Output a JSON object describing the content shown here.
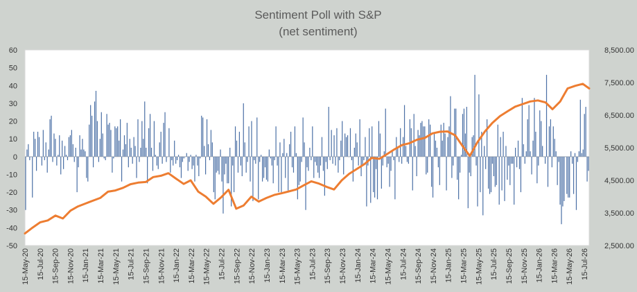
{
  "chart_data": {
    "type": "bar+line",
    "title": "Sentiment Poll with S&P",
    "subtitle": "(net sentiment)",
    "xlabel": "",
    "ylabel_left": "",
    "ylabel_right": "",
    "left_axis": {
      "min": -50,
      "max": 60,
      "ticks": [
        "-50",
        "-40",
        "-30",
        "-20",
        "-10",
        "0",
        "10",
        "20",
        "30",
        "40",
        "50",
        "60"
      ]
    },
    "right_axis": {
      "min": 2500,
      "max": 8500,
      "ticks": [
        "2,500.00",
        "3,500.00",
        "4,500.00",
        "5,500.00",
        "6,500.00",
        "7,500.00",
        "8,500.00"
      ]
    },
    "x_tick_labels": [
      "15-May-20",
      "15-Jul-20",
      "15-Sep-20",
      "15-Nov-20",
      "15-Jan-21",
      "15-Mar-21",
      "15-May-21",
      "15-Jul-21",
      "15-Sep-21",
      "15-Nov-21",
      "15-Jan-22",
      "15-Mar-22",
      "15-May-22",
      "15-Jul-22",
      "15-Sep-22",
      "15-Nov-22",
      "15-Jan-23",
      "15-Mar-23",
      "15-May-23",
      "15-Jul-23",
      "15-Sep-23",
      "15-Nov-23",
      "15-Jan-24",
      "15-Mar-24",
      "15-May-24",
      "15-Jul-24",
      "15-Sep-24",
      "15-Nov-24",
      "15-Jan-25",
      "15-Mar-25",
      "15-May-25",
      "15-Jul-25",
      "15-Sep-25",
      "15-Nov-25",
      "15-Jan-26",
      "15-Mar-26",
      "15-May-26",
      "15-Jul-26"
    ],
    "grid": false,
    "legend": "none",
    "bar_series": {
      "axis": "left",
      "color": "#4a6fa5",
      "values": [
        -30,
        4,
        7,
        -2,
        0,
        -23,
        14,
        10,
        -8,
        14,
        11,
        0,
        -5,
        15,
        -2,
        8,
        -9,
        4,
        21,
        23,
        -3,
        13,
        10,
        -5,
        1,
        12,
        -10,
        9,
        -7,
        6,
        1,
        -2,
        11,
        12,
        15,
        7,
        -3,
        5,
        -20,
        -6,
        12,
        4,
        10,
        4,
        3,
        -12,
        -14,
        18,
        29,
        23,
        -6,
        31,
        37,
        20,
        -3,
        10,
        25,
        13,
        -1,
        -2,
        24,
        18,
        19,
        15,
        -9,
        -1,
        17,
        16,
        17,
        9,
        21,
        -14,
        4,
        12,
        7,
        19,
        -6,
        10,
        5,
        -4,
        11,
        6,
        -12,
        21,
        -3,
        5,
        20,
        10,
        31,
        5,
        -15,
        16,
        24,
        5,
        -8,
        20,
        1,
        -5,
        -7,
        8,
        14,
        -4,
        19,
        25,
        -3,
        0,
        16,
        -9,
        -2,
        -5,
        9,
        -4,
        -2,
        1,
        -6,
        -12,
        -3,
        -1,
        0,
        2,
        -8,
        -3,
        1,
        -7,
        -5,
        -14,
        1,
        -5,
        -11,
        -1,
        23,
        22,
        6,
        -10,
        21,
        7,
        -2,
        15,
        8,
        -20,
        -24,
        -9,
        -8,
        -10,
        4,
        -14,
        -32,
        -10,
        -4,
        -15,
        -15,
        5,
        -28,
        -5,
        -20,
        17,
        9,
        -9,
        14,
        -5,
        -11,
        30,
        8,
        -9,
        -3,
        17,
        -14,
        20,
        -25,
        -2,
        -4,
        22,
        -24,
        -3,
        1,
        -14,
        -12,
        -6,
        -13,
        -14,
        4,
        -1,
        -5,
        -15,
        -2,
        17,
        -5,
        -20,
        8,
        -20,
        2,
        10,
        -12,
        2,
        -19,
        7,
        14,
        -6,
        -9,
        17,
        2,
        -24,
        -16,
        -14,
        -3,
        22,
        8,
        -30,
        -6,
        -8,
        5,
        -2,
        17,
        -12,
        -3,
        -5,
        -9,
        -12,
        -5,
        11,
        -8,
        -22,
        -3,
        -7,
        28,
        -2,
        15,
        -4,
        12,
        -5,
        16,
        -9,
        -2,
        9,
        20,
        -10,
        13,
        11,
        12,
        0,
        16,
        -2,
        -14,
        5,
        13,
        8,
        -5,
        21,
        -11,
        -5,
        -2,
        11,
        -28,
        -5,
        16,
        -26,
        17,
        -20,
        -23,
        -7,
        -24,
        20,
        13,
        -18,
        -5,
        3,
        27,
        -6,
        -4,
        -17,
        -8,
        3,
        -2,
        -24,
        11,
        5,
        -3,
        16,
        -4,
        11,
        29,
        6,
        -3,
        -4,
        21,
        16,
        -19,
        24,
        6,
        -11,
        15,
        12,
        19,
        20,
        17,
        17,
        -10,
        -9,
        21,
        18,
        -17,
        -23,
        13,
        9,
        5,
        -6,
        -16,
        18,
        9,
        19,
        13,
        -19,
        11,
        17,
        34,
        -12,
        -5,
        27,
        27,
        -13,
        -24,
        -9,
        1,
        24,
        27,
        13,
        28,
        -29,
        -9,
        -11,
        11,
        12,
        46,
        -5,
        -28,
        35,
        -20,
        14,
        -33,
        6,
        -7,
        21,
        -18,
        -21,
        -20,
        -4,
        -11,
        -17,
        -16,
        18,
        -27,
        11,
        -19,
        14,
        -25,
        6,
        -13,
        -5,
        -16,
        -4,
        -4,
        -27,
        5,
        -6,
        9,
        -7,
        -20,
        33,
        7,
        -4,
        3,
        21,
        29,
        3,
        -10,
        9,
        33,
        14,
        -15,
        -5,
        26,
        20,
        6,
        0,
        -4,
        46,
        -17,
        17,
        21,
        -6,
        17,
        10,
        3,
        -16,
        -3,
        -27,
        -38,
        -28,
        -25,
        0,
        -21,
        -23,
        -23,
        3,
        -4,
        -21,
        2,
        -30,
        -3,
        3,
        32,
        2,
        4,
        24,
        28,
        -14,
        -8
      ]
    },
    "line_series": {
      "axis": "right",
      "color": "#ed7d31",
      "dates": [
        "2020-05-15",
        "2020-06-15",
        "2020-07-15",
        "2020-08-15",
        "2020-09-15",
        "2020-10-15",
        "2020-11-15",
        "2020-12-15",
        "2021-01-15",
        "2021-02-15",
        "2021-03-15",
        "2021-04-15",
        "2021-05-15",
        "2021-06-15",
        "2021-07-15",
        "2021-08-15",
        "2021-09-15",
        "2021-10-15",
        "2021-11-15",
        "2021-12-15",
        "2022-01-15",
        "2022-02-15",
        "2022-03-15",
        "2022-04-15",
        "2022-05-15",
        "2022-06-15",
        "2022-07-15",
        "2022-08-15",
        "2022-09-15",
        "2022-10-15",
        "2022-11-15",
        "2022-12-15",
        "2023-01-15",
        "2023-02-15",
        "2023-03-15",
        "2023-04-15",
        "2023-05-15",
        "2023-06-15",
        "2023-07-15",
        "2023-08-15",
        "2023-09-15",
        "2023-10-15",
        "2023-11-15",
        "2023-12-15",
        "2024-01-15",
        "2024-02-15",
        "2024-03-15",
        "2024-04-15",
        "2024-05-15",
        "2024-06-15",
        "2024-07-15",
        "2024-08-15",
        "2024-09-15",
        "2024-10-15",
        "2024-11-15",
        "2024-12-15",
        "2025-01-15",
        "2025-02-15",
        "2025-03-15",
        "2025-04-15",
        "2025-05-15",
        "2025-06-15",
        "2025-07-15",
        "2025-08-15",
        "2025-09-15",
        "2025-10-15",
        "2025-11-15",
        "2025-12-15",
        "2026-01-15",
        "2026-02-15",
        "2026-03-15",
        "2026-04-15",
        "2026-05-15",
        "2026-06-15",
        "2026-07-15",
        "2026-08-10"
      ],
      "values": [
        2870,
        3050,
        3210,
        3270,
        3420,
        3330,
        3570,
        3700,
        3790,
        3880,
        3960,
        4150,
        4190,
        4270,
        4380,
        4430,
        4450,
        4600,
        4640,
        4720,
        4550,
        4390,
        4500,
        4150,
        4000,
        3780,
        3970,
        4210,
        3630,
        3730,
        4000,
        3850,
        3960,
        4050,
        4100,
        4160,
        4220,
        4350,
        4470,
        4400,
        4300,
        4220,
        4500,
        4700,
        4850,
        5000,
        5190,
        5160,
        5300,
        5450,
        5580,
        5640,
        5750,
        5800,
        5940,
        5990,
        6000,
        5880,
        5570,
        5250,
        5660,
        6000,
        6260,
        6470,
        6620,
        6760,
        6840,
        6920,
        6950,
        6890,
        6680,
        6920,
        7320,
        7400,
        7460,
        7320
      ]
    }
  }
}
